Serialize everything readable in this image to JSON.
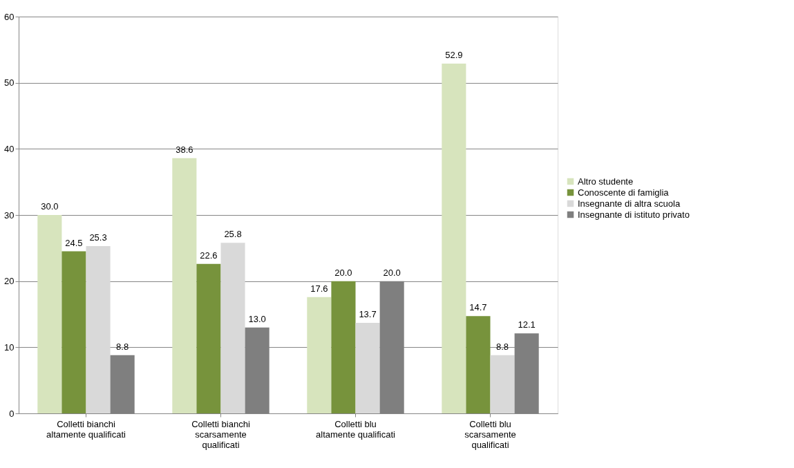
{
  "chart_data": {
    "type": "bar",
    "categories": [
      "Colletti bianchi altamente qualificati",
      "Colletti bianchi scarsamente qualificati",
      "Colletti blu altamente qualificati",
      "Colletti blu scarsamente qualificati"
    ],
    "series": [
      {
        "name": "Altro studente",
        "color": "#d7e4bd",
        "values": [
          30.0,
          38.6,
          17.6,
          52.9
        ],
        "value_labels": [
          "30.0",
          "38.6",
          "17.6",
          "52.9"
        ]
      },
      {
        "name": "Conoscente di famiglia",
        "color": "#77933c",
        "values": [
          24.5,
          22.6,
          20.0,
          14.7
        ],
        "value_labels": [
          "24.5",
          "22.6",
          "20.0",
          "14.7"
        ]
      },
      {
        "name": "Insegnante di altra scuola",
        "color": "#d9d9d9",
        "values": [
          25.3,
          25.8,
          13.7,
          8.8
        ],
        "value_labels": [
          "25.3",
          "25.8",
          "13.7",
          "8.8"
        ]
      },
      {
        "name": "Insegnante di istituto privato",
        "color": "#7f7f7f",
        "values": [
          8.8,
          13.0,
          20.0,
          12.1
        ],
        "value_labels": [
          "8.8",
          "13.0",
          "20.0",
          "12.1"
        ]
      }
    ],
    "ylim": [
      0,
      60
    ],
    "yticks": [
      0,
      10,
      20,
      30,
      40,
      50,
      60
    ],
    "grid": "y",
    "legend": "right"
  }
}
